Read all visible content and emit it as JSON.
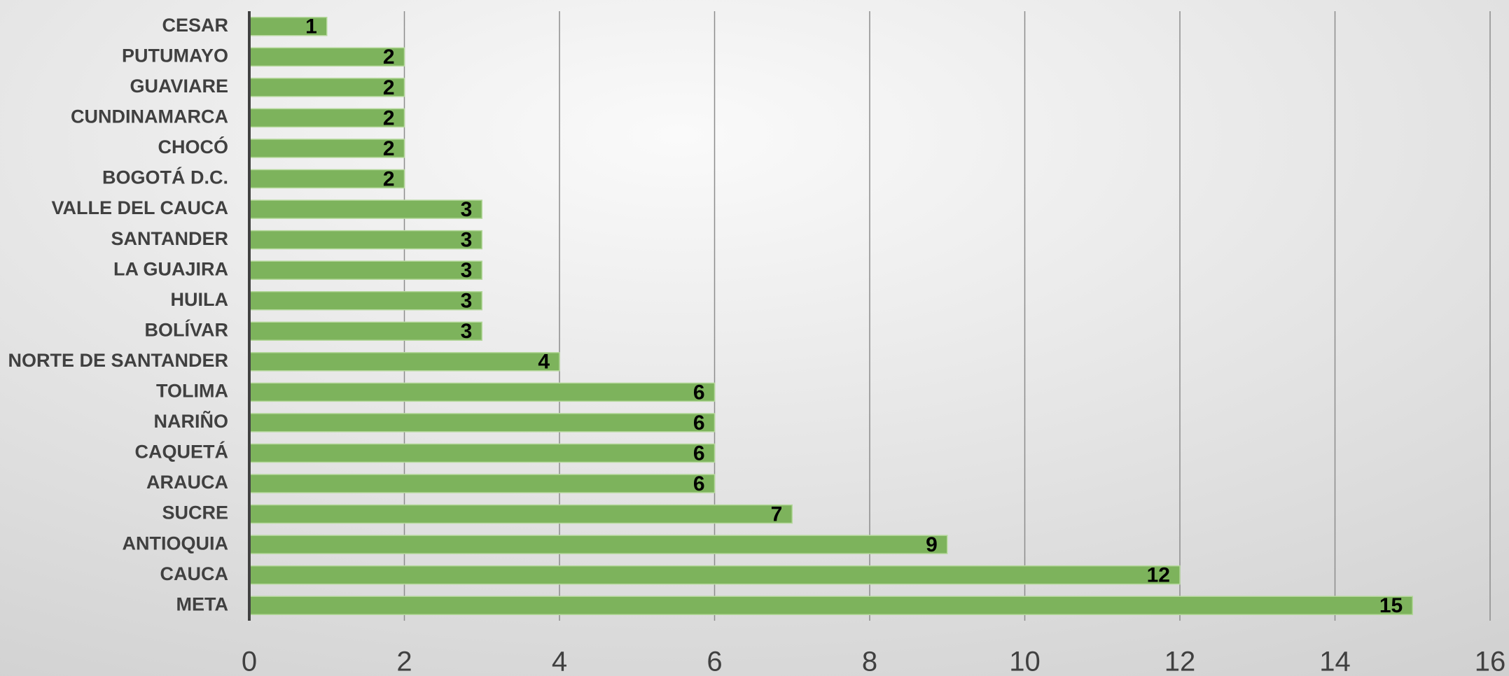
{
  "chart_data": {
    "type": "bar",
    "orientation": "horizontal",
    "categories": [
      "CESAR",
      "PUTUMAYO",
      "GUAVIARE",
      "CUNDINAMARCA",
      "CHOCÓ",
      "BOGOTÁ D.C.",
      "VALLE DEL CAUCA",
      "SANTANDER",
      "LA GUAJIRA",
      "HUILA",
      "BOLÍVAR",
      "NORTE DE SANTANDER",
      "TOLIMA",
      "NARIÑO",
      "CAQUETÁ",
      "ARAUCA",
      "SUCRE",
      "ANTIOQUIA",
      "CAUCA",
      "META"
    ],
    "values": [
      1,
      2,
      2,
      2,
      2,
      2,
      3,
      3,
      3,
      3,
      3,
      4,
      6,
      6,
      6,
      6,
      7,
      9,
      12,
      15
    ],
    "color": "#7db35c",
    "xlim": [
      0,
      16
    ],
    "xticks": [
      0,
      2,
      4,
      6,
      8,
      10,
      12,
      14,
      16
    ],
    "grid": true
  }
}
